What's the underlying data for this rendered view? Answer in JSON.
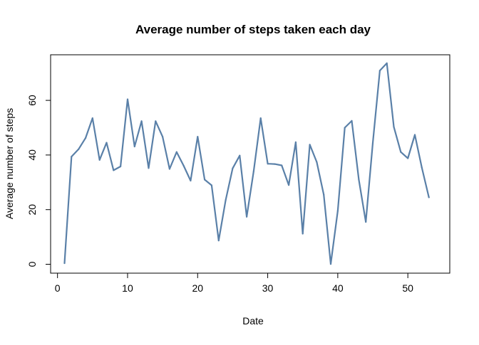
{
  "chart_data": {
    "type": "line",
    "title": "Average number of steps taken each day",
    "xlabel": "Date",
    "ylabel": "Average number of steps",
    "xlim": [
      0,
      54
    ],
    "ylim": [
      0,
      74
    ],
    "x_ticks": [
      0,
      10,
      20,
      30,
      40,
      50
    ],
    "y_ticks": [
      0,
      20,
      40,
      60
    ],
    "grid": false,
    "legend": "none",
    "line_color": "#5a80a8",
    "series": [
      {
        "name": "Average number of steps",
        "x": [
          1,
          2,
          3,
          4,
          5,
          6,
          7,
          8,
          9,
          10,
          11,
          12,
          13,
          14,
          15,
          16,
          17,
          18,
          19,
          20,
          21,
          22,
          23,
          24,
          25,
          26,
          27,
          28,
          29,
          30,
          31,
          32,
          33,
          34,
          35,
          36,
          37,
          38,
          39,
          40,
          41,
          42,
          43,
          44,
          45,
          46,
          47,
          48,
          49,
          50,
          51,
          52,
          53
        ],
        "values": [
          0.4,
          39.4,
          42.1,
          46.2,
          53.5,
          38.2,
          44.5,
          34.4,
          35.8,
          60.4,
          43.1,
          52.4,
          35.2,
          52.4,
          46.7,
          34.9,
          41.1,
          36.1,
          30.6,
          46.7,
          31.0,
          28.9,
          8.7,
          23.5,
          35.1,
          39.8,
          17.4,
          34.1,
          53.5,
          36.8,
          36.7,
          36.2,
          29.0,
          44.7,
          11.2,
          43.8,
          37.4,
          25.5,
          0.1,
          19.6,
          50.0,
          52.5,
          31.0,
          15.5,
          44.4,
          70.9,
          73.6,
          50.3,
          41.1,
          38.8,
          47.4,
          35.4,
          24.5
        ]
      }
    ]
  }
}
